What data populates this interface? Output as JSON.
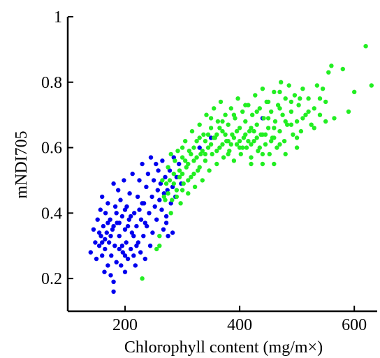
{
  "chart_data": {
    "type": "scatter",
    "xlabel": "Chlorophyll content (mg/m×)",
    "ylabel": "mNDI705",
    "xlim": [
      100,
      640
    ],
    "ylim": [
      0.1,
      1.0
    ],
    "x_ticks": [
      200,
      400,
      600
    ],
    "y_ticks": [
      0.2,
      0.4,
      0.6,
      0.8,
      1
    ],
    "y_tick_labels": [
      "0.2",
      "0.4",
      "0.6",
      "0.8",
      "1"
    ],
    "grid": false,
    "series": [
      {
        "color": "#0000ee",
        "points": [
          [
            140,
            0.28
          ],
          [
            145,
            0.35
          ],
          [
            148,
            0.31
          ],
          [
            150,
            0.26
          ],
          [
            152,
            0.38
          ],
          [
            155,
            0.3
          ],
          [
            157,
            0.41
          ],
          [
            158,
            0.33
          ],
          [
            160,
            0.27
          ],
          [
            160,
            0.45
          ],
          [
            162,
            0.36
          ],
          [
            164,
            0.22
          ],
          [
            165,
            0.29
          ],
          [
            166,
            0.4
          ],
          [
            168,
            0.34
          ],
          [
            170,
            0.24
          ],
          [
            170,
            0.43
          ],
          [
            172,
            0.31
          ],
          [
            174,
            0.38
          ],
          [
            175,
            0.21
          ],
          [
            176,
            0.27
          ],
          [
            178,
            0.35
          ],
          [
            180,
            0.16
          ],
          [
            180,
            0.19
          ],
          [
            180,
            0.49
          ],
          [
            182,
            0.3
          ],
          [
            183,
            0.42
          ],
          [
            185,
            0.25
          ],
          [
            186,
            0.37
          ],
          [
            188,
            0.47
          ],
          [
            190,
            0.29
          ],
          [
            190,
            0.33
          ],
          [
            192,
            0.44
          ],
          [
            193,
            0.24
          ],
          [
            195,
            0.39
          ],
          [
            196,
            0.28
          ],
          [
            198,
            0.5
          ],
          [
            200,
            0.35
          ],
          [
            200,
            0.22
          ],
          [
            202,
            0.31
          ],
          [
            203,
            0.42
          ],
          [
            205,
            0.26
          ],
          [
            207,
            0.38
          ],
          [
            208,
            0.46
          ],
          [
            210,
            0.29
          ],
          [
            212,
            0.34
          ],
          [
            213,
            0.52
          ],
          [
            215,
            0.27
          ],
          [
            216,
            0.4
          ],
          [
            218,
            0.24
          ],
          [
            220,
            0.36
          ],
          [
            222,
            0.45
          ],
          [
            223,
            0.31
          ],
          [
            225,
            0.5
          ],
          [
            227,
            0.28
          ],
          [
            228,
            0.38
          ],
          [
            230,
            0.55
          ],
          [
            232,
            0.33
          ],
          [
            233,
            0.43
          ],
          [
            235,
            0.26
          ],
          [
            237,
            0.48
          ],
          [
            238,
            0.36
          ],
          [
            240,
            0.52
          ],
          [
            242,
            0.4
          ],
          [
            244,
            0.3
          ],
          [
            245,
            0.57
          ],
          [
            247,
            0.45
          ],
          [
            248,
            0.34
          ],
          [
            250,
            0.5
          ],
          [
            252,
            0.42
          ],
          [
            254,
            0.55
          ],
          [
            255,
            0.38
          ],
          [
            257,
            0.47
          ],
          [
            258,
            0.53
          ],
          [
            260,
            0.44
          ],
          [
            262,
            0.49
          ],
          [
            264,
            0.41
          ],
          [
            265,
            0.56
          ],
          [
            267,
            0.35
          ],
          [
            268,
            0.46
          ],
          [
            270,
            0.51
          ],
          [
            272,
            0.39
          ],
          [
            274,
            0.47
          ],
          [
            275,
            0.33
          ],
          [
            278,
            0.53
          ],
          [
            280,
            0.43
          ],
          [
            283,
            0.48
          ],
          [
            285,
            0.57
          ],
          [
            288,
            0.45
          ],
          [
            290,
            0.51
          ],
          [
            294,
            0.55
          ],
          [
            298,
            0.49
          ],
          [
            160,
            0.31
          ],
          [
            175,
            0.33
          ],
          [
            185,
            0.4
          ],
          [
            195,
            0.3
          ],
          [
            205,
            0.36
          ],
          [
            215,
            0.33
          ],
          [
            225,
            0.41
          ],
          [
            235,
            0.37
          ],
          [
            180,
            0.36
          ],
          [
            200,
            0.41
          ],
          [
            220,
            0.3
          ],
          [
            170,
            0.37
          ],
          [
            190,
            0.37
          ],
          [
            210,
            0.39
          ],
          [
            230,
            0.43
          ],
          [
            155,
            0.34
          ],
          [
            165,
            0.32
          ],
          [
            200,
            0.27
          ],
          [
            350,
            0.63
          ],
          [
            440,
            0.69
          ],
          [
            272,
            0.37
          ],
          [
            283,
            0.34
          ],
          [
            330,
            0.6
          ]
        ]
      },
      {
        "color": "#22ee22",
        "points": [
          [
            230,
            0.2
          ],
          [
            260,
            0.33
          ],
          [
            268,
            0.45
          ],
          [
            272,
            0.49
          ],
          [
            275,
            0.54
          ],
          [
            278,
            0.5
          ],
          [
            280,
            0.58
          ],
          [
            282,
            0.44
          ],
          [
            285,
            0.52
          ],
          [
            287,
            0.56
          ],
          [
            290,
            0.47
          ],
          [
            292,
            0.59
          ],
          [
            295,
            0.53
          ],
          [
            297,
            0.43
          ],
          [
            300,
            0.57
          ],
          [
            302,
            0.49
          ],
          [
            305,
            0.62
          ],
          [
            307,
            0.54
          ],
          [
            310,
            0.46
          ],
          [
            312,
            0.59
          ],
          [
            315,
            0.51
          ],
          [
            317,
            0.65
          ],
          [
            320,
            0.56
          ],
          [
            322,
            0.48
          ],
          [
            325,
            0.62
          ],
          [
            327,
            0.53
          ],
          [
            330,
            0.67
          ],
          [
            332,
            0.58
          ],
          [
            335,
            0.5
          ],
          [
            337,
            0.64
          ],
          [
            340,
            0.56
          ],
          [
            342,
            0.7
          ],
          [
            345,
            0.6
          ],
          [
            347,
            0.53
          ],
          [
            350,
            0.66
          ],
          [
            352,
            0.58
          ],
          [
            355,
            0.72
          ],
          [
            357,
            0.63
          ],
          [
            360,
            0.55
          ],
          [
            362,
            0.68
          ],
          [
            365,
            0.6
          ],
          [
            367,
            0.74
          ],
          [
            370,
            0.65
          ],
          [
            372,
            0.57
          ],
          [
            375,
            0.7
          ],
          [
            377,
            0.62
          ],
          [
            380,
            0.67
          ],
          [
            382,
            0.59
          ],
          [
            385,
            0.72
          ],
          [
            387,
            0.64
          ],
          [
            390,
            0.56
          ],
          [
            392,
            0.69
          ],
          [
            395,
            0.61
          ],
          [
            397,
            0.75
          ],
          [
            400,
            0.66
          ],
          [
            402,
            0.58
          ],
          [
            405,
            0.71
          ],
          [
            407,
            0.63
          ],
          [
            410,
            0.68
          ],
          [
            412,
            0.6
          ],
          [
            415,
            0.73
          ],
          [
            417,
            0.65
          ],
          [
            420,
            0.57
          ],
          [
            422,
            0.7
          ],
          [
            425,
            0.62
          ],
          [
            427,
            0.76
          ],
          [
            430,
            0.67
          ],
          [
            432,
            0.59
          ],
          [
            435,
            0.72
          ],
          [
            437,
            0.64
          ],
          [
            440,
            0.78
          ],
          [
            442,
            0.69
          ],
          [
            445,
            0.61
          ],
          [
            447,
            0.74
          ],
          [
            450,
            0.66
          ],
          [
            452,
            0.58
          ],
          [
            455,
            0.71
          ],
          [
            457,
            0.63
          ],
          [
            460,
            0.77
          ],
          [
            462,
            0.68
          ],
          [
            465,
            0.6
          ],
          [
            467,
            0.73
          ],
          [
            470,
            0.65
          ],
          [
            472,
            0.8
          ],
          [
            475,
            0.7
          ],
          [
            478,
            0.62
          ],
          [
            480,
            0.75
          ],
          [
            483,
            0.67
          ],
          [
            486,
            0.79
          ],
          [
            490,
            0.71
          ],
          [
            493,
            0.64
          ],
          [
            496,
            0.76
          ],
          [
            500,
            0.68
          ],
          [
            503,
            0.73
          ],
          [
            507,
            0.65
          ],
          [
            510,
            0.78
          ],
          [
            515,
            0.7
          ],
          [
            520,
            0.75
          ],
          [
            525,
            0.67
          ],
          [
            530,
            0.72
          ],
          [
            535,
            0.79
          ],
          [
            540,
            0.7
          ],
          [
            545,
            0.78
          ],
          [
            550,
            0.68
          ],
          [
            555,
            0.83
          ],
          [
            560,
            0.85
          ],
          [
            565,
            0.69
          ],
          [
            580,
            0.84
          ],
          [
            590,
            0.71
          ],
          [
            620,
            0.91
          ],
          [
            630,
            0.79
          ],
          [
            400,
            0.62
          ],
          [
            380,
            0.62
          ],
          [
            360,
            0.64
          ],
          [
            340,
            0.62
          ],
          [
            320,
            0.6
          ],
          [
            420,
            0.66
          ],
          [
            440,
            0.64
          ],
          [
            460,
            0.66
          ],
          [
            300,
            0.52
          ],
          [
            310,
            0.55
          ],
          [
            330,
            0.54
          ],
          [
            350,
            0.61
          ],
          [
            370,
            0.61
          ],
          [
            390,
            0.63
          ],
          [
            410,
            0.64
          ],
          [
            430,
            0.63
          ],
          [
            450,
            0.69
          ],
          [
            470,
            0.61
          ],
          [
            490,
            0.67
          ],
          [
            365,
            0.66
          ],
          [
            375,
            0.64
          ],
          [
            385,
            0.61
          ],
          [
            395,
            0.65
          ],
          [
            405,
            0.6
          ],
          [
            415,
            0.62
          ],
          [
            425,
            0.65
          ],
          [
            435,
            0.6
          ],
          [
            445,
            0.64
          ],
          [
            455,
            0.62
          ],
          [
            345,
            0.64
          ],
          [
            355,
            0.63
          ],
          [
            335,
            0.59
          ],
          [
            325,
            0.57
          ],
          [
            315,
            0.58
          ],
          [
            305,
            0.56
          ],
          [
            295,
            0.51
          ],
          [
            285,
            0.49
          ],
          [
            270,
            0.44
          ],
          [
            265,
            0.5
          ],
          [
            280,
            0.4
          ],
          [
            300,
            0.47
          ],
          [
            320,
            0.52
          ],
          [
            340,
            0.58
          ],
          [
            360,
            0.59
          ],
          [
            380,
            0.58
          ],
          [
            400,
            0.6
          ],
          [
            420,
            0.61
          ],
          [
            440,
            0.58
          ],
          [
            460,
            0.63
          ],
          [
            480,
            0.68
          ],
          [
            500,
            0.63
          ],
          [
            520,
            0.71
          ],
          [
            540,
            0.75
          ],
          [
            470,
            0.72
          ],
          [
            450,
            0.74
          ],
          [
            430,
            0.71
          ],
          [
            410,
            0.73
          ],
          [
            390,
            0.7
          ],
          [
            370,
            0.68
          ],
          [
            350,
            0.69
          ],
          [
            330,
            0.63
          ],
          [
            310,
            0.5
          ],
          [
            290,
            0.45
          ],
          [
            275,
            0.46
          ],
          [
            260,
            0.3
          ],
          [
            255,
            0.29
          ],
          [
            300,
            0.6
          ],
          [
            420,
            0.55
          ],
          [
            440,
            0.55
          ],
          [
            460,
            0.55
          ],
          [
            480,
            0.58
          ],
          [
            500,
            0.6
          ],
          [
            510,
            0.69
          ],
          [
            505,
            0.75
          ],
          [
            530,
            0.66
          ],
          [
            550,
            0.74
          ],
          [
            600,
            0.77
          ],
          [
            490,
            0.74
          ],
          [
            470,
            0.77
          ]
        ]
      }
    ]
  }
}
